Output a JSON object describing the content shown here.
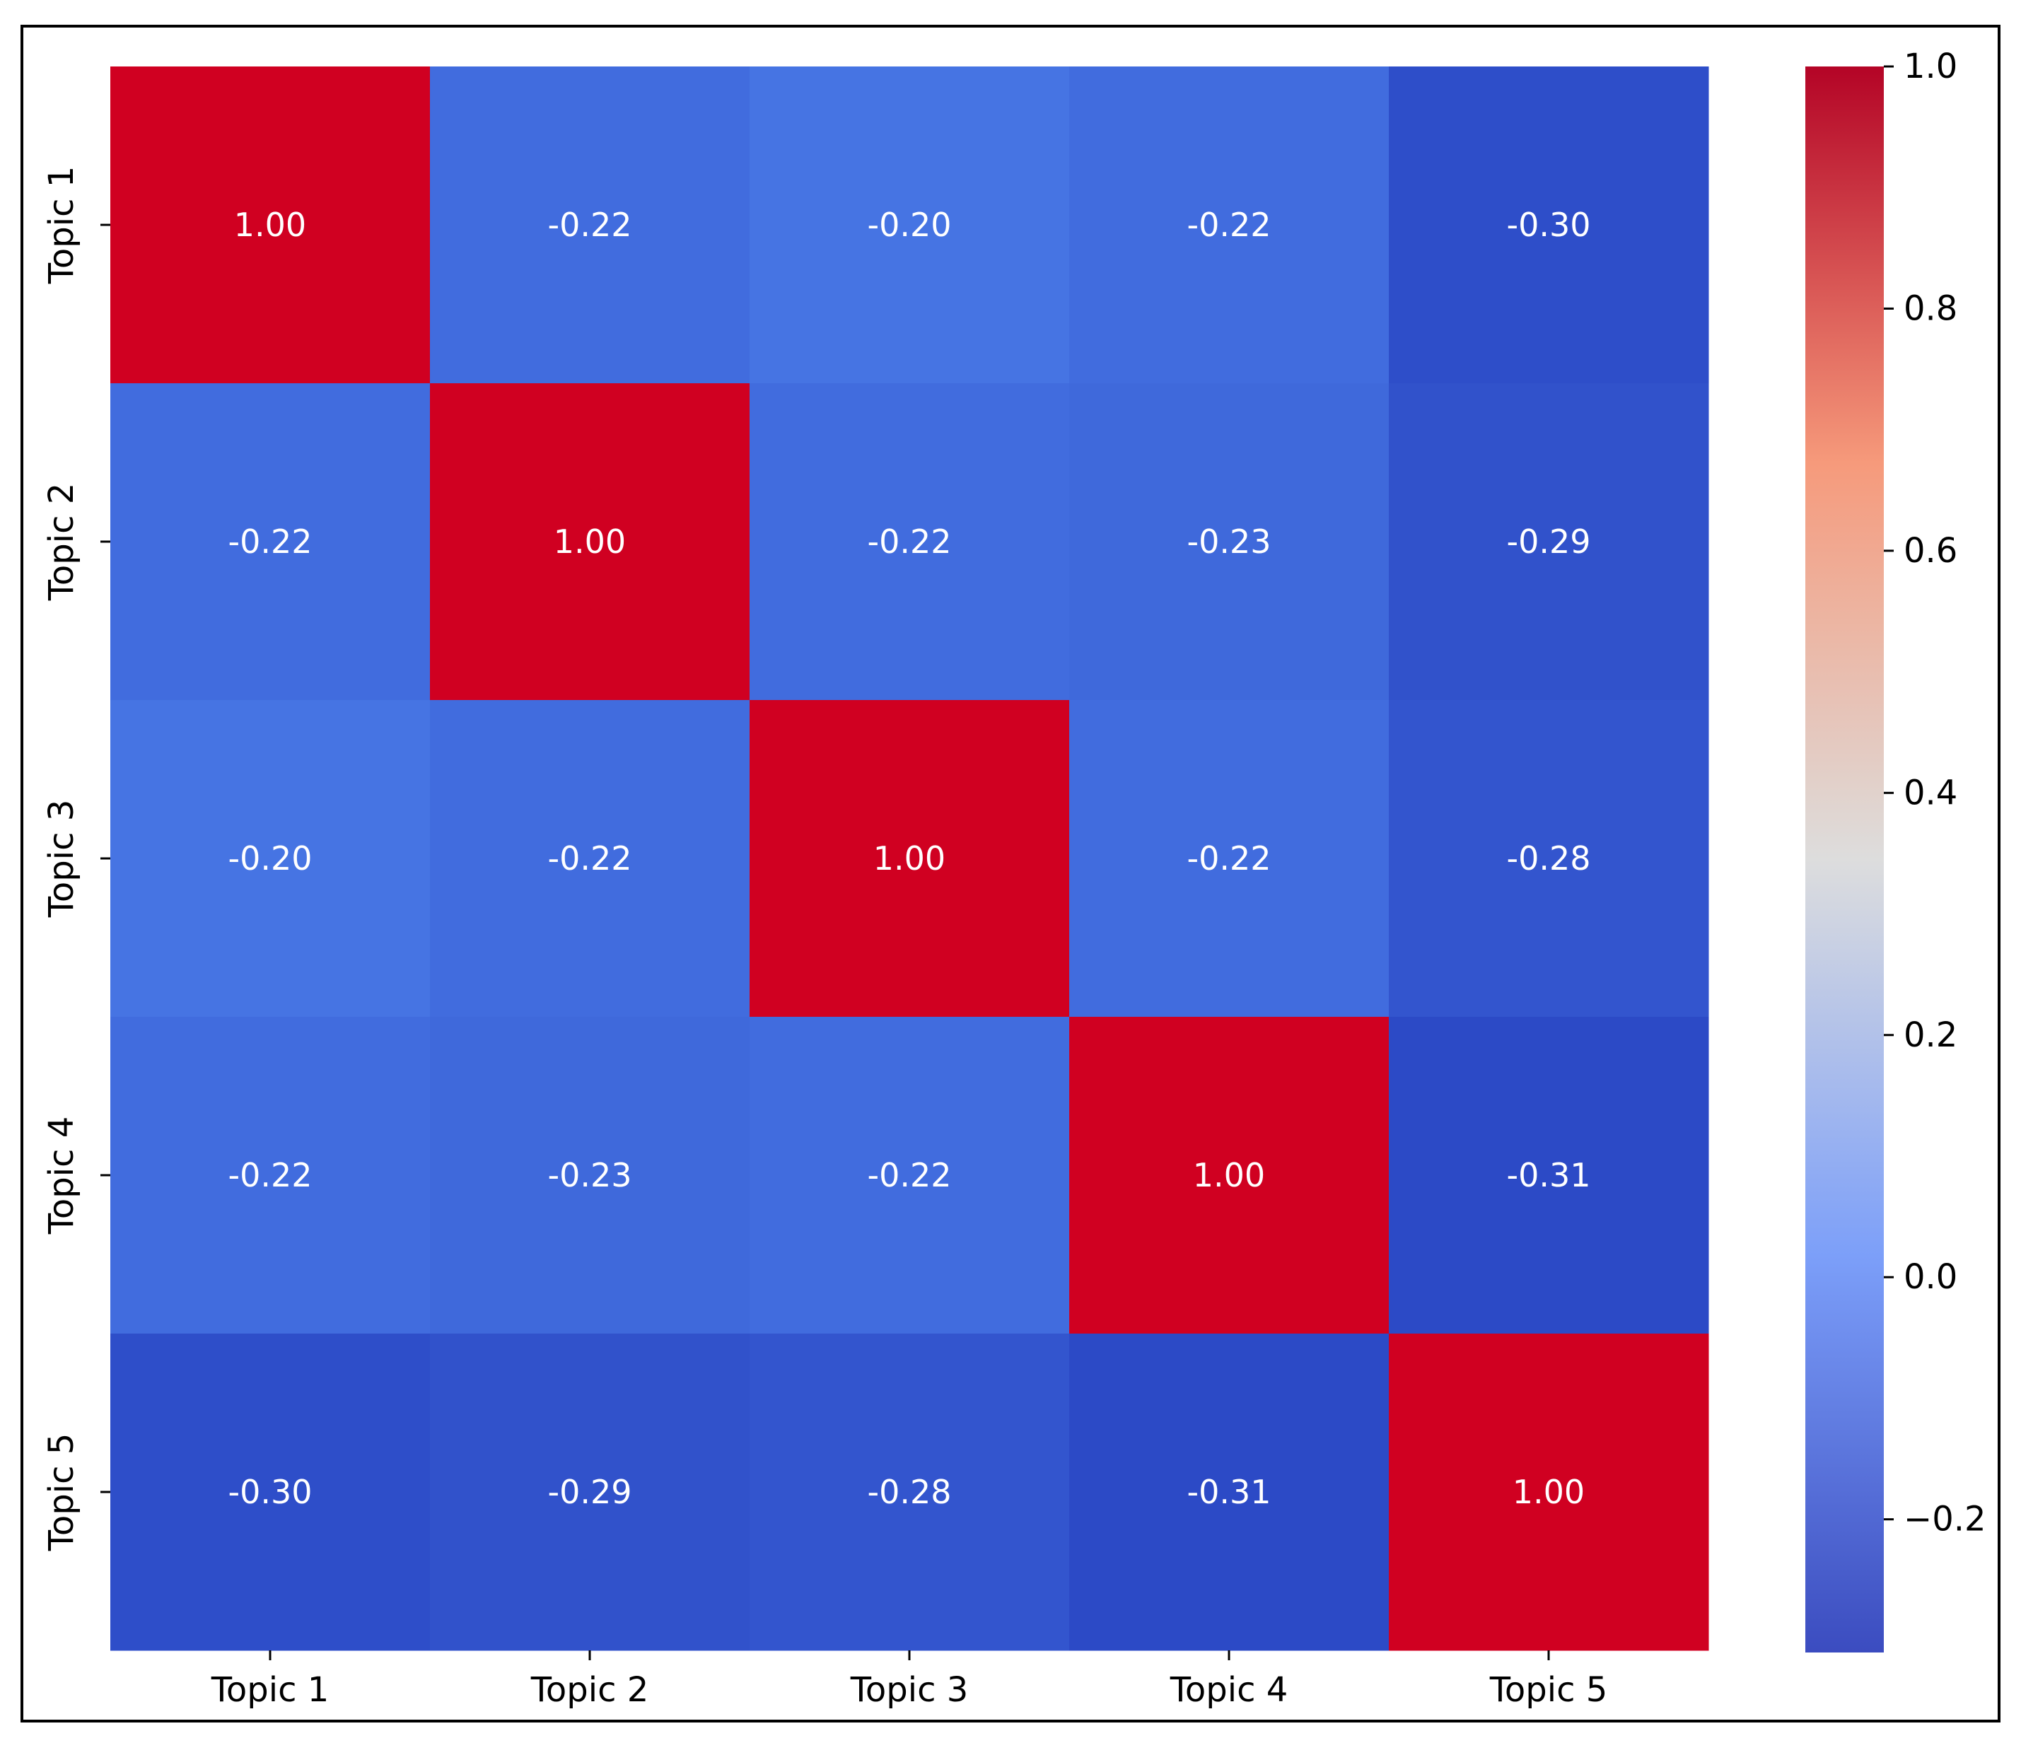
{
  "chart_data": {
    "type": "heatmap",
    "title": "",
    "xlabel": "",
    "ylabel": "",
    "x_tick_labels": [
      "Topic 1",
      "Topic 2",
      "Topic 3",
      "Topic 4",
      "Topic 5"
    ],
    "y_tick_labels": [
      "Topic 1",
      "Topic 2",
      "Topic 3",
      "Topic 4",
      "Topic 5"
    ],
    "values": [
      [
        1.0,
        -0.22,
        -0.2,
        -0.22,
        -0.3
      ],
      [
        -0.22,
        1.0,
        -0.22,
        -0.23,
        -0.29
      ],
      [
        -0.2,
        -0.22,
        1.0,
        -0.22,
        -0.28
      ],
      [
        -0.22,
        -0.23,
        -0.22,
        1.0,
        -0.31
      ],
      [
        -0.3,
        -0.29,
        -0.28,
        -0.31,
        1.0
      ]
    ],
    "annotations": [
      [
        "1.00",
        "-0.22",
        "-0.20",
        "-0.22",
        "-0.30"
      ],
      [
        "-0.22",
        "1.00",
        "-0.22",
        "-0.23",
        "-0.29"
      ],
      [
        "-0.20",
        "-0.22",
        "1.00",
        "-0.22",
        "-0.28"
      ],
      [
        "-0.22",
        "-0.23",
        "-0.22",
        "1.00",
        "-0.31"
      ],
      [
        "-0.30",
        "-0.29",
        "-0.28",
        "-0.31",
        "1.00"
      ]
    ],
    "colormap": "coolwarm",
    "vmin": -0.31,
    "vmax": 1.0,
    "colorbar": {
      "ticks": [
        1.0,
        0.8,
        0.6,
        0.4,
        0.2,
        0.0,
        -0.2
      ],
      "tick_labels": [
        "1.0",
        "0.8",
        "0.6",
        "0.4",
        "0.2",
        "0.0",
        "−0.2"
      ]
    },
    "grid": false,
    "legend": "none",
    "annotation_color": "#ffffff"
  }
}
